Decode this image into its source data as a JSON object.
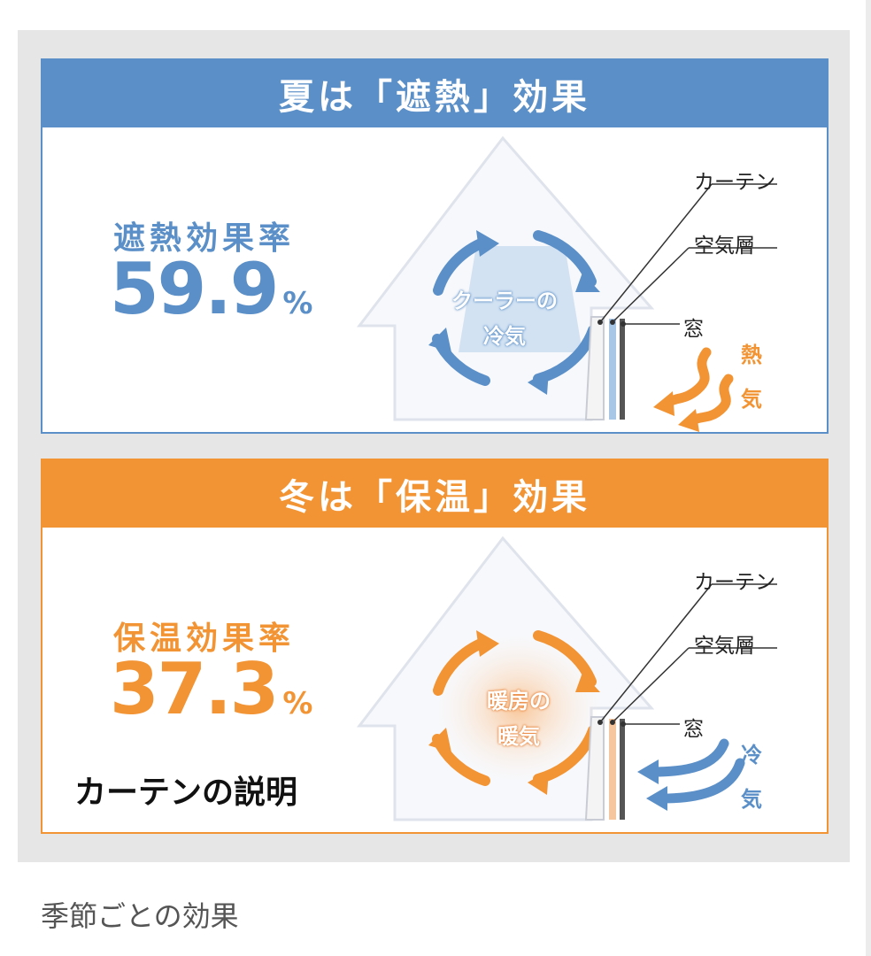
{
  "summer": {
    "header": "夏は「遮熱」効果",
    "rate_label": "遮熱効果率",
    "rate_value": "59.9",
    "rate_unit": "%",
    "flow_line1": "クーラーの",
    "flow_line2": "冷気",
    "curtain_label": "カーテン",
    "air_layer_label": "空気層",
    "window_label": "窓",
    "outside_char1": "熱",
    "outside_char2": "気",
    "accent_color": "#5b8fc8",
    "outside_color": "#f29434"
  },
  "winter": {
    "header": "冬は「保温」効果",
    "rate_label": "保温効果率",
    "rate_value": "37.3",
    "rate_unit": "%",
    "flow_line1": "暖房の",
    "flow_line2": "暖気",
    "curtain_label": "カーテン",
    "air_layer_label": "空気層",
    "window_label": "窓",
    "outside_char1": "冷",
    "outside_char2": "気",
    "accent_color": "#f29434",
    "outside_color": "#5b8fc8"
  },
  "overlay_caption": "カーテンの説明",
  "page_caption": "季節ごとの効果"
}
